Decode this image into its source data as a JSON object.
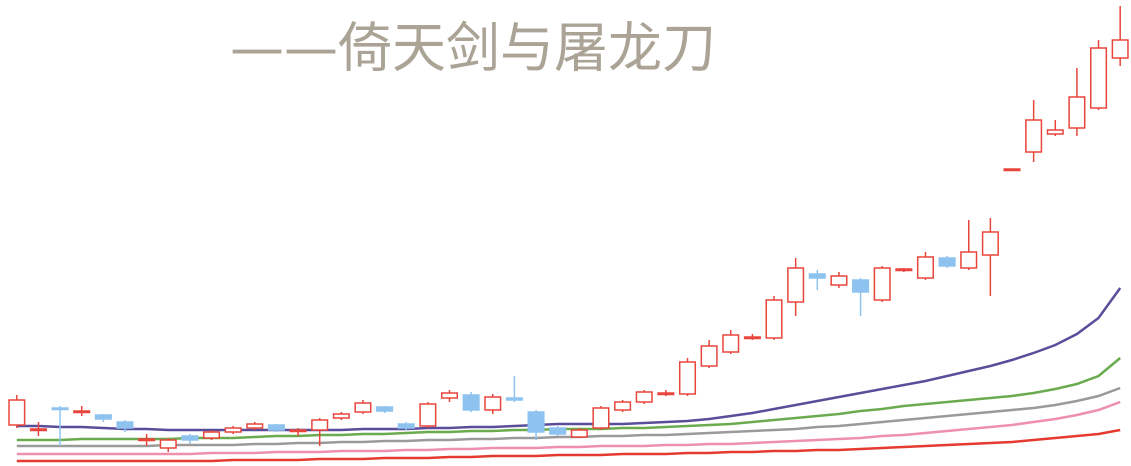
{
  "chart_data": {
    "type": "candlestick",
    "title": "——倚天剑与屠龙刀",
    "categories": [
      null,
      null,
      null,
      null,
      null,
      null,
      null,
      null,
      null,
      null,
      null,
      null,
      null,
      null,
      null,
      null,
      null,
      null,
      null,
      null,
      null,
      null,
      null,
      null,
      null,
      null,
      null,
      null,
      null,
      null,
      null,
      null,
      null,
      null,
      null,
      null,
      null,
      null,
      null,
      null,
      null,
      null,
      null,
      null,
      null,
      null,
      null,
      null,
      null,
      null,
      null,
      null
    ],
    "open": [
      41,
      36,
      58,
      54,
      51,
      44,
      26,
      18,
      30,
      28,
      34,
      38,
      41,
      35,
      36,
      48,
      54,
      59,
      42,
      40,
      68,
      71,
      56,
      68,
      54,
      38,
      29,
      38,
      56,
      64,
      72,
      72,
      100,
      114,
      128,
      128,
      164,
      192,
      181,
      186,
      166,
      196,
      188,
      208,
      198,
      211,
      296,
      314,
      332,
      338,
      358,
      408
    ],
    "high": [
      71,
      44,
      60,
      60,
      52,
      46,
      32,
      28,
      32,
      36,
      40,
      44,
      42,
      38,
      48,
      54,
      66,
      60,
      44,
      64,
      76,
      74,
      72,
      90,
      56,
      40,
      38,
      60,
      66,
      76,
      76,
      108,
      126,
      136,
      132,
      170,
      208,
      196,
      194,
      188,
      200,
      198,
      214,
      210,
      246,
      248,
      297,
      366,
      346,
      398,
      426,
      460
    ],
    "low": [
      38,
      30,
      20,
      50,
      44,
      34,
      20,
      14,
      22,
      26,
      32,
      36,
      34,
      30,
      20,
      46,
      52,
      53,
      36,
      38,
      64,
      54,
      52,
      64,
      26,
      30,
      28,
      36,
      54,
      62,
      70,
      70,
      98,
      112,
      126,
      126,
      150,
      176,
      178,
      150,
      164,
      194,
      186,
      198,
      196,
      170,
      296,
      304,
      330,
      330,
      356,
      400
    ],
    "close": [
      66,
      37,
      57,
      55,
      47,
      38,
      27,
      26,
      26,
      34,
      38,
      42,
      36,
      36,
      46,
      52,
      63,
      55,
      38,
      62,
      73,
      56,
      69,
      66,
      34,
      32,
      36,
      58,
      64,
      74,
      73,
      104,
      120,
      131,
      129,
      166,
      198,
      188,
      190,
      174,
      198,
      197,
      209,
      200,
      214,
      234,
      297,
      346,
      336,
      369,
      418,
      426
    ],
    "up_color": "#e8453c",
    "down_color": "#8ec3ef",
    "lines": [
      {
        "color": "#5a4e9a",
        "values": [
          40,
          40,
          39,
          39,
          38,
          37,
          37,
          36,
          36,
          36,
          36,
          36,
          36,
          36,
          36,
          36,
          37,
          37,
          37,
          38,
          38,
          39,
          39,
          40,
          41,
          42,
          42,
          42,
          42,
          43,
          44,
          45,
          47,
          50,
          53,
          57,
          61,
          65,
          69,
          73,
          77,
          81,
          85,
          90,
          95,
          100,
          106,
          113,
          121,
          132,
          148,
          178
        ]
      },
      {
        "color": "#6aab4f",
        "values": [
          26,
          26,
          26,
          27,
          27,
          27,
          27,
          27,
          28,
          28,
          28,
          29,
          30,
          30,
          31,
          31,
          32,
          32,
          33,
          34,
          34,
          35,
          35,
          36,
          36,
          37,
          37,
          37,
          38,
          38,
          39,
          40,
          41,
          42,
          44,
          46,
          48,
          50,
          52,
          55,
          57,
          60,
          62,
          64,
          66,
          68,
          70,
          73,
          77,
          82,
          90,
          108
        ]
      },
      {
        "color": "#9a9a9a",
        "values": [
          20,
          20,
          20,
          20,
          20,
          20,
          20,
          21,
          21,
          21,
          21,
          22,
          22,
          23,
          23,
          24,
          24,
          25,
          25,
          26,
          26,
          27,
          27,
          28,
          28,
          29,
          29,
          30,
          30,
          31,
          31,
          32,
          33,
          34,
          35,
          36,
          37,
          39,
          40,
          42,
          44,
          46,
          48,
          50,
          52,
          54,
          56,
          58,
          61,
          65,
          70,
          78
        ]
      },
      {
        "color": "#ee8fb0",
        "values": [
          12,
          12,
          12,
          12,
          12,
          12,
          12,
          12,
          12,
          13,
          13,
          13,
          14,
          14,
          14,
          15,
          15,
          15,
          16,
          16,
          17,
          17,
          18,
          18,
          18,
          19,
          19,
          20,
          20,
          20,
          21,
          21,
          22,
          22,
          23,
          24,
          25,
          26,
          27,
          28,
          30,
          31,
          33,
          35,
          37,
          39,
          41,
          44,
          47,
          51,
          56,
          64
        ]
      },
      {
        "color": "#e53a30",
        "values": [
          5,
          5,
          5,
          5,
          5,
          5,
          5,
          5,
          5,
          5,
          6,
          6,
          6,
          6,
          7,
          7,
          7,
          8,
          8,
          8,
          9,
          9,
          10,
          10,
          10,
          11,
          11,
          11,
          12,
          12,
          12,
          13,
          13,
          14,
          14,
          15,
          15,
          16,
          16,
          17,
          18,
          19,
          20,
          21,
          22,
          23,
          24,
          26,
          28,
          30,
          32,
          36
        ]
      }
    ],
    "ylim": [
      0,
      466
    ]
  }
}
